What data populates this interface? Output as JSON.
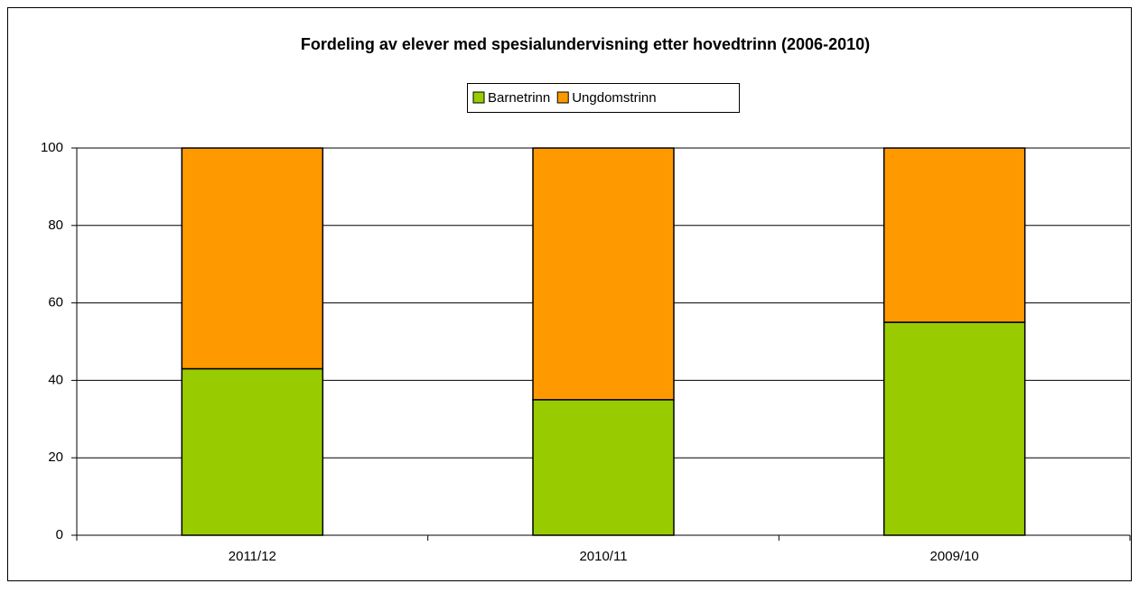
{
  "chart_data": {
    "type": "stacked_bar",
    "title": "Fordeling av elever med spesialundervisning etter hovedtrinn (2006-2010)",
    "categories": [
      "2011/12",
      "2010/11",
      "2009/10"
    ],
    "series": [
      {
        "name": "Barnetrinn",
        "color": "#99cc00",
        "values": [
          43,
          35,
          55
        ]
      },
      {
        "name": "Ungdomstrinn",
        "color": "#ff9900",
        "values": [
          57,
          65,
          45
        ]
      }
    ],
    "ylim": [
      0,
      100
    ],
    "yticks": [
      0,
      20,
      40,
      60,
      80,
      100
    ],
    "grid": true,
    "legend": "top"
  }
}
